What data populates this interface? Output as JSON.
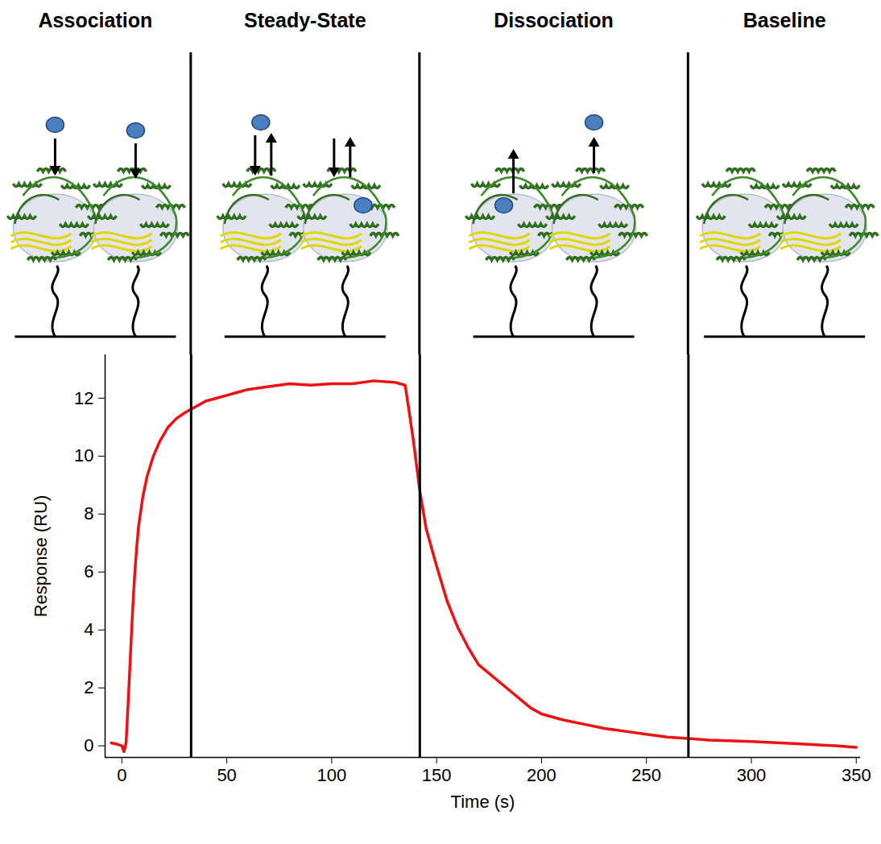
{
  "chart_data": {
    "type": "line",
    "x_label": "Time (s)",
    "y_label": "Response (RU)",
    "color": "#ee1111",
    "x": [
      -5,
      -2,
      0,
      1,
      2,
      3,
      4,
      5,
      6,
      7,
      8,
      10,
      12,
      15,
      18,
      22,
      26,
      30,
      35,
      40,
      45,
      50,
      55,
      60,
      70,
      80,
      90,
      100,
      110,
      120,
      130,
      135,
      137,
      139,
      142,
      145,
      150,
      155,
      160,
      165,
      170,
      175,
      180,
      185,
      190,
      195,
      200,
      210,
      220,
      230,
      240,
      250,
      260,
      270,
      280,
      300,
      320,
      340,
      350
    ],
    "values": [
      0.1,
      0.05,
      0,
      -0.2,
      0.1,
      1.5,
      3.0,
      4.5,
      5.8,
      6.8,
      7.6,
      8.6,
      9.3,
      10.0,
      10.5,
      11.0,
      11.3,
      11.5,
      11.7,
      11.9,
      12.0,
      12.1,
      12.2,
      12.3,
      12.4,
      12.5,
      12.45,
      12.5,
      12.5,
      12.6,
      12.55,
      12.45,
      11.5,
      10.5,
      8.8,
      7.5,
      6.2,
      5.0,
      4.1,
      3.4,
      2.8,
      2.5,
      2.2,
      1.9,
      1.6,
      1.3,
      1.1,
      0.9,
      0.75,
      0.6,
      0.5,
      0.4,
      0.3,
      0.25,
      0.2,
      0.15,
      0.08,
      0.0,
      -0.05
    ],
    "xlim": [
      -8,
      352
    ],
    "ylim": [
      -0.4,
      13.5
    ],
    "xticks": [
      0,
      50,
      100,
      150,
      200,
      250,
      300,
      350
    ],
    "yticks": [
      0,
      2,
      4,
      6,
      8,
      10,
      12
    ],
    "phase_labels": [
      "Association",
      "Steady-State",
      "Dissociation",
      "Baseline"
    ],
    "phase_boundaries": [
      33,
      142,
      270
    ]
  }
}
